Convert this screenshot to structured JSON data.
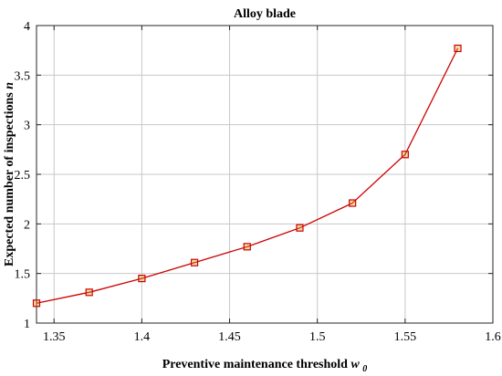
{
  "chart_data": {
    "type": "line",
    "title": "Alloy blade",
    "xlabel": "Preventive maintenance threshold",
    "xlabel_symbol": "w",
    "xlabel_subscript": "0",
    "ylabel": "Expected number of inspections",
    "ylabel_symbol": "n",
    "xlim": [
      1.34,
      1.6
    ],
    "ylim": [
      1,
      4
    ],
    "xticks": [
      1.35,
      1.4,
      1.45,
      1.5,
      1.55,
      1.6
    ],
    "xtick_labels": [
      "1.35",
      "1.4",
      "1.45",
      "1.5",
      "1.55",
      "1.6"
    ],
    "yticks": [
      1,
      1.5,
      2,
      2.5,
      3,
      3.5,
      4
    ],
    "ytick_labels": [
      "1",
      "1.5",
      "2",
      "2.5",
      "3",
      "3.5",
      "4"
    ],
    "grid": true,
    "series": [
      {
        "x": [
          1.34,
          1.37,
          1.4,
          1.43,
          1.46,
          1.49,
          1.52,
          1.55,
          1.58
        ],
        "y": [
          1.2,
          1.31,
          1.45,
          1.61,
          1.77,
          1.96,
          2.21,
          2.7,
          3.77
        ],
        "line_color": "#cc0000",
        "marker": "square",
        "marker_edge_color": "#cc0000",
        "marker_face_color": "#d4a017"
      }
    ]
  }
}
